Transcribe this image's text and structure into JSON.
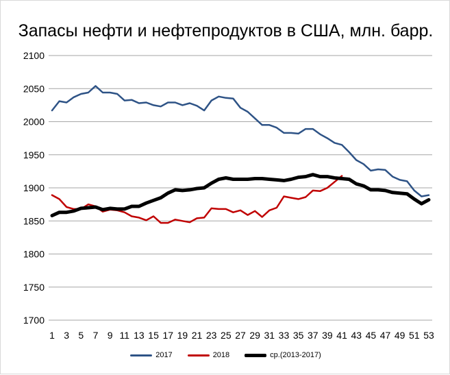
{
  "chart_data": {
    "type": "line",
    "title": "Запасы нефти и нефтепродуктов в США, млн. барр.",
    "xlabel": "",
    "ylabel": "",
    "ylim": [
      1700,
      2100
    ],
    "yticks": [
      1700,
      1750,
      1800,
      1850,
      1900,
      1950,
      2000,
      2050,
      2100
    ],
    "xlim": [
      1,
      53
    ],
    "xticks": [
      1,
      3,
      5,
      7,
      9,
      11,
      13,
      15,
      17,
      19,
      21,
      23,
      25,
      27,
      29,
      31,
      33,
      35,
      37,
      39,
      41,
      43,
      45,
      47,
      49,
      51,
      53
    ],
    "grid": "horizontal",
    "legend_position": "bottom",
    "series": [
      {
        "name": "2017",
        "color": "#2e5386",
        "x": [
          1,
          2,
          3,
          4,
          5,
          6,
          7,
          8,
          9,
          10,
          11,
          12,
          13,
          14,
          15,
          16,
          17,
          18,
          19,
          20,
          21,
          22,
          23,
          24,
          25,
          26,
          27,
          28,
          29,
          30,
          31,
          32,
          33,
          34,
          35,
          36,
          37,
          38,
          39,
          40,
          41,
          42,
          43,
          44,
          45,
          46,
          47,
          48,
          49,
          50,
          51,
          52,
          53
        ],
        "values": [
          2017,
          2031,
          2029,
          2037,
          2042,
          2044,
          2054,
          2044,
          2044,
          2042,
          2032,
          2033,
          2028,
          2029,
          2025,
          2023,
          2029,
          2029,
          2025,
          2028,
          2024,
          2017,
          2032,
          2038,
          2036,
          2035,
          2021,
          2015,
          2005,
          1995,
          1995,
          1991,
          1983,
          1983,
          1982,
          1989,
          1989,
          1981,
          1975,
          1968,
          1965,
          1954,
          1942,
          1936,
          1926,
          1928,
          1927,
          1917,
          1912,
          1910,
          1896,
          1887,
          1889
        ]
      },
      {
        "name": "2018",
        "color": "#c00000",
        "x": [
          1,
          2,
          3,
          4,
          5,
          6,
          7,
          8,
          9,
          10,
          11,
          12,
          13,
          14,
          15,
          16,
          17,
          18,
          19,
          20,
          21,
          22,
          23,
          24,
          25,
          26,
          27,
          28,
          29,
          30,
          31,
          32,
          33,
          34,
          35,
          36,
          37,
          38,
          39,
          40,
          41
        ],
        "values": [
          1889,
          1883,
          1871,
          1868,
          1868,
          1875,
          1872,
          1864,
          1867,
          1866,
          1863,
          1857,
          1855,
          1851,
          1857,
          1847,
          1847,
          1852,
          1850,
          1848,
          1854,
          1855,
          1869,
          1868,
          1868,
          1863,
          1866,
          1859,
          1865,
          1856,
          1866,
          1870,
          1887,
          1885,
          1883,
          1886,
          1896,
          1895,
          1900,
          1909,
          1918
        ]
      },
      {
        "name": "ср.(2013-2017)",
        "color": "#000000",
        "x": [
          1,
          2,
          3,
          4,
          5,
          6,
          7,
          8,
          9,
          10,
          11,
          12,
          13,
          14,
          15,
          16,
          17,
          18,
          19,
          20,
          21,
          22,
          23,
          24,
          25,
          26,
          27,
          28,
          29,
          30,
          31,
          32,
          33,
          34,
          35,
          36,
          37,
          38,
          39,
          40,
          41,
          42,
          43,
          44,
          45,
          46,
          47,
          48,
          49,
          50,
          51,
          52,
          53
        ],
        "values": [
          1858,
          1863,
          1863,
          1865,
          1869,
          1870,
          1871,
          1867,
          1869,
          1868,
          1868,
          1872,
          1872,
          1877,
          1881,
          1885,
          1892,
          1897,
          1896,
          1897,
          1899,
          1900,
          1907,
          1913,
          1915,
          1913,
          1913,
          1913,
          1914,
          1914,
          1913,
          1912,
          1911,
          1913,
          1916,
          1917,
          1920,
          1917,
          1917,
          1915,
          1914,
          1913,
          1906,
          1903,
          1897,
          1897,
          1896,
          1893,
          1892,
          1891,
          1883,
          1876,
          1882
        ]
      }
    ]
  }
}
